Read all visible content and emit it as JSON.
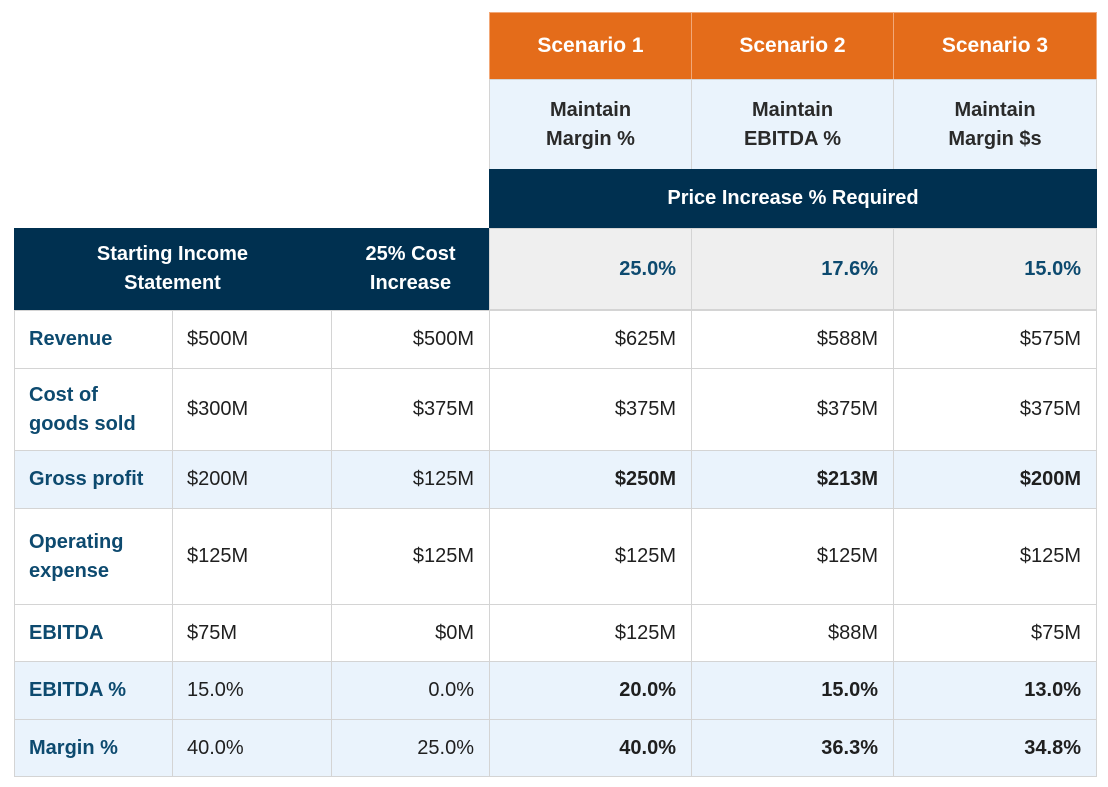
{
  "scenarios": [
    {
      "name": "Scenario 1",
      "approach": "Maintain Margin %",
      "price_increase": "25.0%"
    },
    {
      "name": "Scenario 2",
      "approach": "Maintain EBITDA %",
      "price_increase": "17.6%"
    },
    {
      "name": "Scenario 3",
      "approach": "Maintain Margin $s",
      "price_increase": "15.0%"
    }
  ],
  "price_increase_header": "Price Increase % Required",
  "columns": {
    "starting": "Starting Income Statement",
    "cost_increase": "25% Cost Increase"
  },
  "rows": [
    {
      "label": "Revenue",
      "starting": "$500M",
      "cost_increase": "$500M",
      "s1": "$625M",
      "s2": "$588M",
      "s3": "$575M"
    },
    {
      "label": "Cost of goods sold",
      "starting": "$300M",
      "cost_increase": "$375M",
      "s1": "$375M",
      "s2": "$375M",
      "s3": "$375M"
    },
    {
      "label": "Gross profit",
      "starting": "$200M",
      "cost_increase": "$125M",
      "s1": "$250M",
      "s2": "$213M",
      "s3": "$200M"
    },
    {
      "label": "Operating expense",
      "starting": "$125M",
      "cost_increase": "$125M",
      "s1": "$125M",
      "s2": "$125M",
      "s3": "$125M"
    },
    {
      "label": "EBITDA",
      "starting": "$75M",
      "cost_increase": "$0M",
      "s1": "$125M",
      "s2": "$88M",
      "s3": "$75M"
    },
    {
      "label": "EBITDA %",
      "starting": "15.0%",
      "cost_increase": "0.0%",
      "s1": "20.0%",
      "s2": "15.0%",
      "s3": "13.0%"
    },
    {
      "label": "Margin %",
      "starting": "40.0%",
      "cost_increase": "25.0%",
      "s1": "40.0%",
      "s2": "36.3%",
      "s3": "34.8%"
    }
  ],
  "colors": {
    "orange": "#e46c1a",
    "navy": "#003050",
    "light_blue": "#eaf3fc",
    "label_blue": "#0d4a6f"
  }
}
